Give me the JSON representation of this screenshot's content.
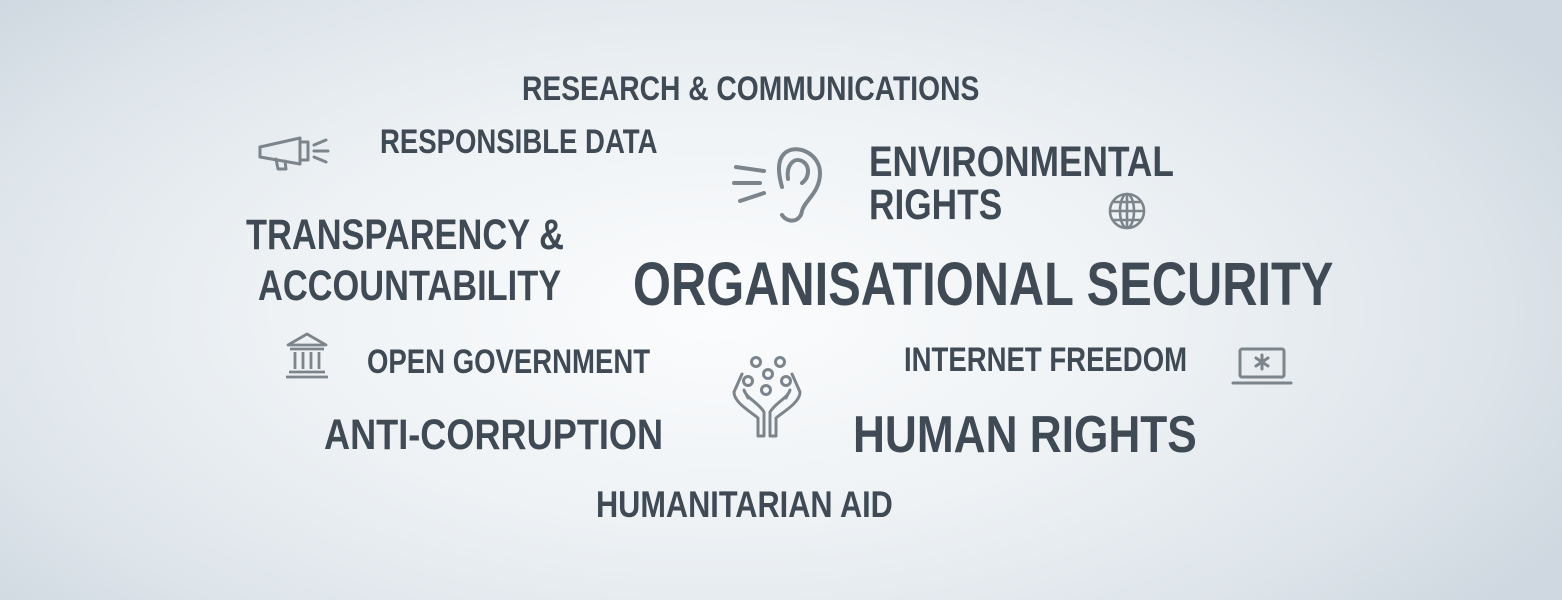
{
  "cloud": {
    "research_communications": "RESEARCH & COMMUNICATIONS",
    "responsible_data": "RESPONSIBLE DATA",
    "environmental_rights_line1": "ENVIRONMENTAL",
    "environmental_rights_line2": "RIGHTS",
    "transparency_line1": "TRANSPARENCY &",
    "transparency_line2": "ACCOUNTABILITY",
    "organisational_security": "ORGANISATIONAL SECURITY",
    "open_government": "OPEN GOVERNMENT",
    "internet_freedom": "INTERNET FREEDOM",
    "anti_corruption": "ANTI-CORRUPTION",
    "human_rights": "HUMAN RIGHTS",
    "humanitarian_aid": "HUMANITARIAN AID"
  },
  "icons": {
    "megaphone": "megaphone-icon",
    "ear": "ear-icon",
    "globe": "globe-icon",
    "government_building": "government-building-icon",
    "hands": "hands-icon",
    "laptop": "laptop-icon"
  },
  "colors": {
    "text": "#3f4a55",
    "icon": "#7d858c"
  }
}
